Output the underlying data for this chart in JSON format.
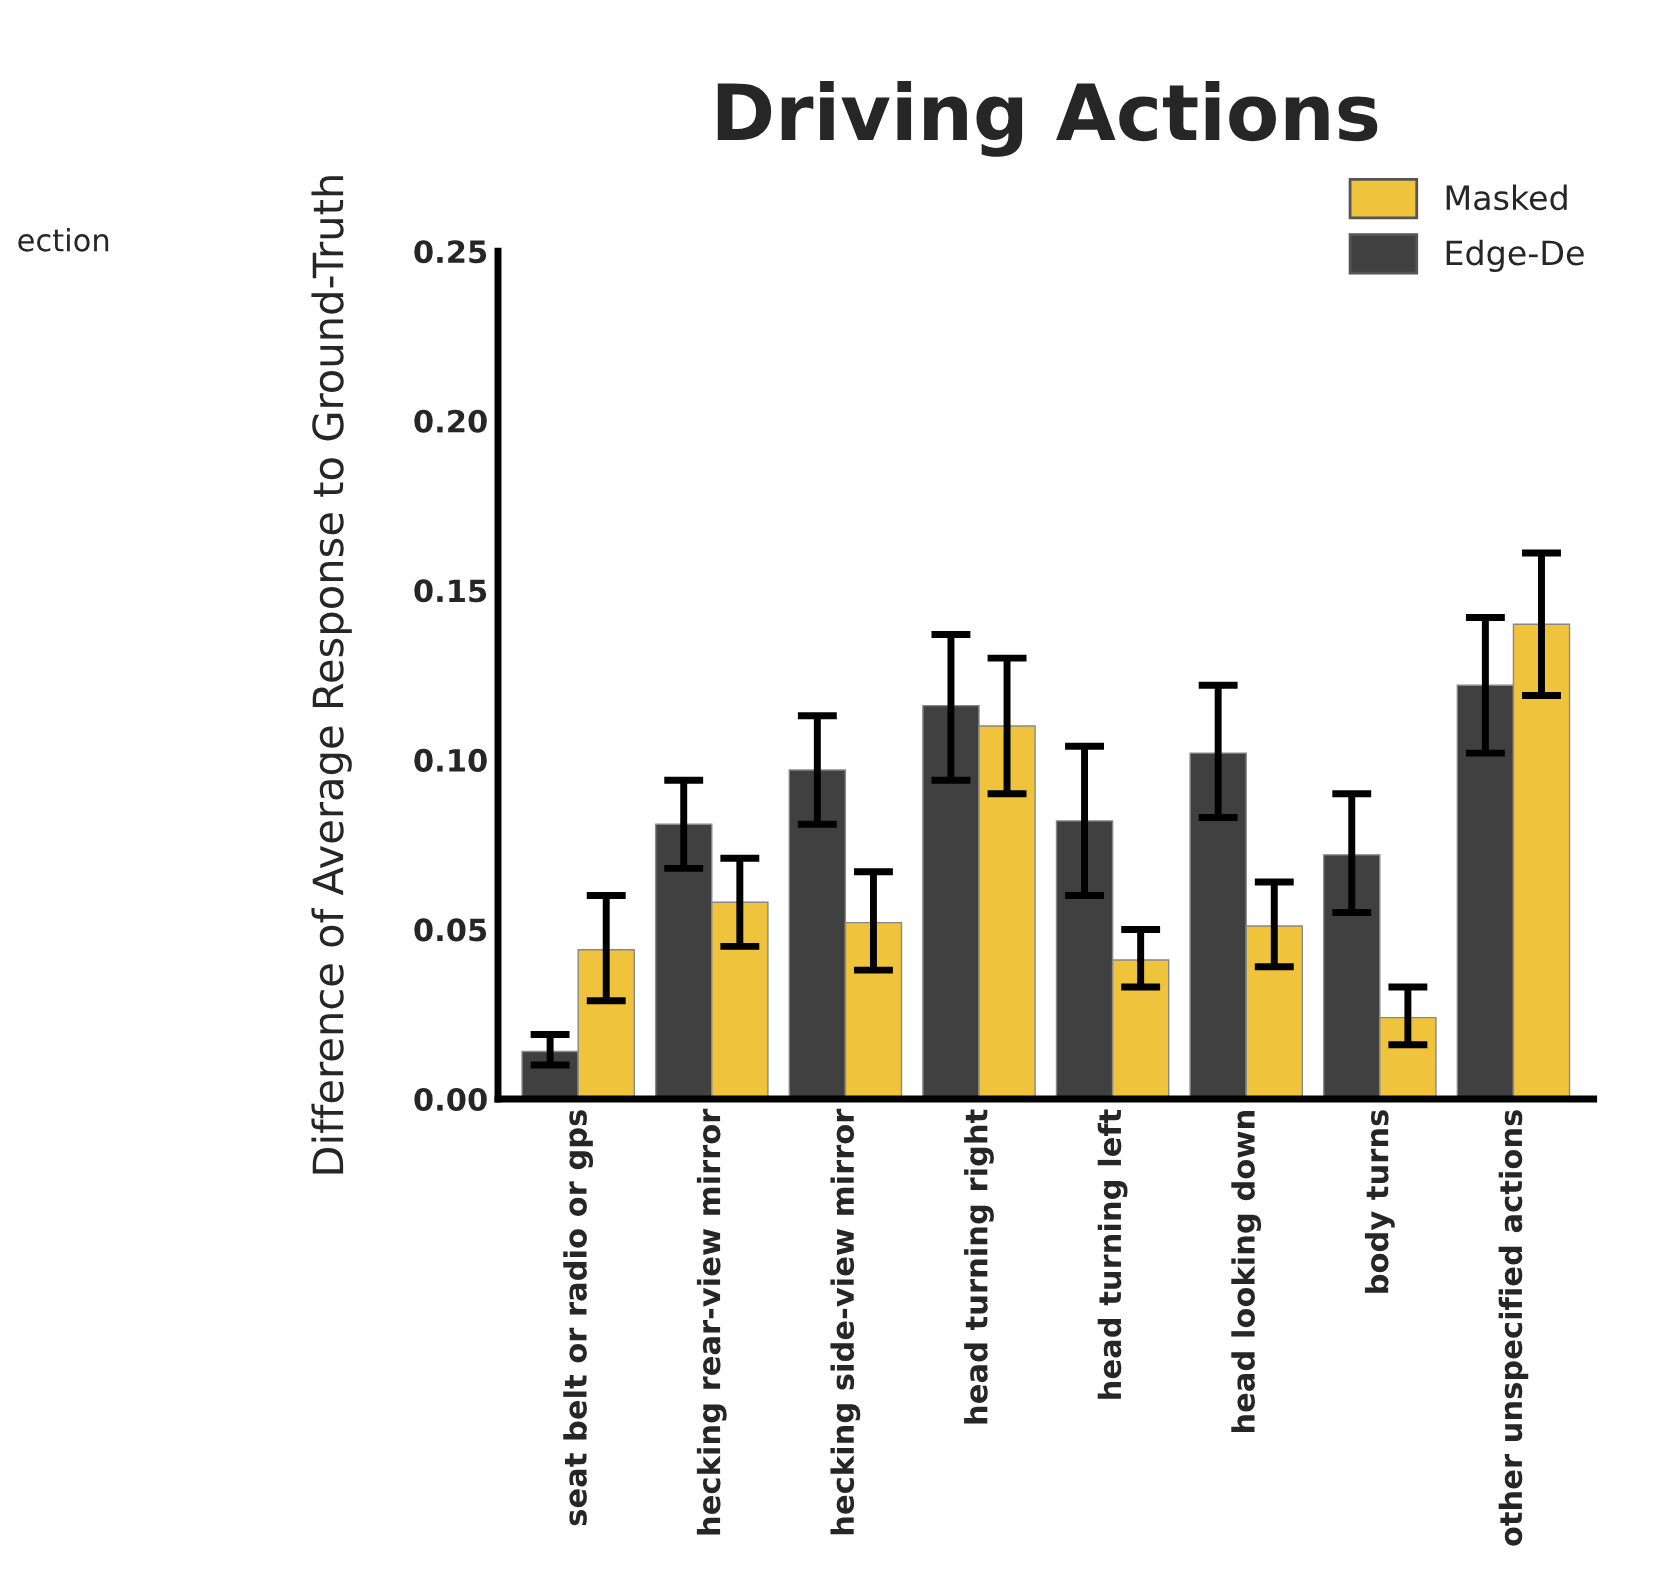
{
  "chart_data": {
    "type": "bar",
    "title": "Driving Actions",
    "ylabel": "Difference of Average Response to Ground-Truth",
    "categories": [
      "seat belt or radio or gps",
      "hecking rear-view mirror",
      "hecking side-view mirror",
      "head turning right",
      "head turning left",
      "head looking down",
      "body turns",
      "other unspecified actions"
    ],
    "series": [
      {
        "name": "Edge-De",
        "color": "#404040",
        "values": [
          0.014,
          0.081,
          0.097,
          0.116,
          0.082,
          0.102,
          0.072,
          0.122
        ],
        "errors": [
          [
            0.01,
            0.019
          ],
          [
            0.068,
            0.094
          ],
          [
            0.081,
            0.113
          ],
          [
            0.094,
            0.137
          ],
          [
            0.06,
            0.104
          ],
          [
            0.083,
            0.122
          ],
          [
            0.055,
            0.09
          ],
          [
            0.102,
            0.142
          ]
        ]
      },
      {
        "name": "Masked",
        "color": "#f0c33c",
        "values": [
          0.044,
          0.058,
          0.052,
          0.11,
          0.041,
          0.051,
          0.024,
          0.14
        ],
        "errors": [
          [
            0.029,
            0.06
          ],
          [
            0.045,
            0.071
          ],
          [
            0.038,
            0.067
          ],
          [
            0.09,
            0.13
          ],
          [
            0.033,
            0.05
          ],
          [
            0.039,
            0.064
          ],
          [
            0.016,
            0.033
          ],
          [
            0.119,
            0.161
          ]
        ]
      }
    ],
    "ylim": [
      0,
      0.25
    ],
    "yticks": [
      {
        "value": 0,
        "label": "0.00"
      },
      {
        "value": 0.05,
        "label": "0.05"
      },
      {
        "value": 0.1,
        "label": "0.10"
      },
      {
        "value": 0.15,
        "label": "0.15"
      },
      {
        "value": 0.2,
        "label": "0.20"
      },
      {
        "value": 0.25,
        "label": "0.25"
      }
    ],
    "annotations": [
      "ection"
    ],
    "legend": "top right",
    "grid": false
  }
}
